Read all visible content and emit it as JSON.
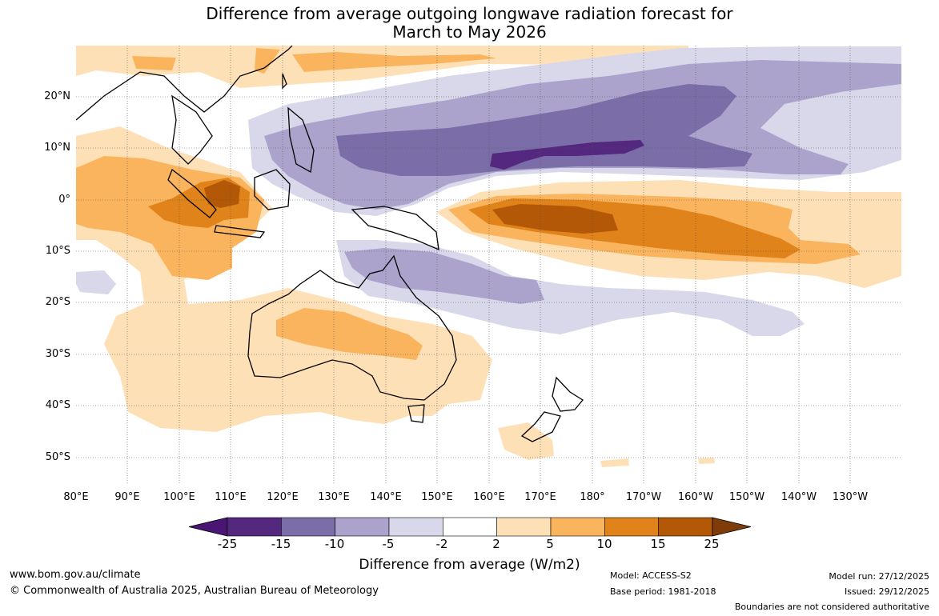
{
  "title": {
    "line1": "Difference from average outgoing longwave radiation forecast for",
    "line2": "March to May 2026"
  },
  "axes": {
    "latitudes": [
      "20°N",
      "10°N",
      "0°",
      "10°S",
      "20°S",
      "30°S",
      "40°S",
      "50°S"
    ],
    "longitudes": [
      "80°E",
      "90°E",
      "100°E",
      "110°E",
      "120°E",
      "130°E",
      "140°E",
      "150°E",
      "160°E",
      "170°E",
      "180°",
      "170°W",
      "160°W",
      "150°W",
      "140°W",
      "130°W"
    ]
  },
  "colorbar": {
    "ticks": [
      "-25",
      "-15",
      "-10",
      "-5",
      "-2",
      "2",
      "5",
      "10",
      "15",
      "25"
    ],
    "colors": [
      "#4a1674",
      "#54287e",
      "#7b6ea8",
      "#aba3cc",
      "#d9d7ea",
      "#ffffff",
      "#fee0b6",
      "#fbb45e",
      "#e0831a",
      "#b35806",
      "#7f3b08"
    ],
    "label": "Difference from average (W/m2)"
  },
  "footer": {
    "website": "www.bom.gov.au/climate",
    "copyright": "© Commonwealth of Australia 2025, Australian Bureau of Meteorology",
    "model": "Model: ACCESS-S2",
    "base_period": "Base period: 1981-2018",
    "model_run": "Model run: 27/12/2025",
    "issued": "Issued: 29/12/2025",
    "disclaimer": "Boundaries are not considered authoritative"
  }
}
